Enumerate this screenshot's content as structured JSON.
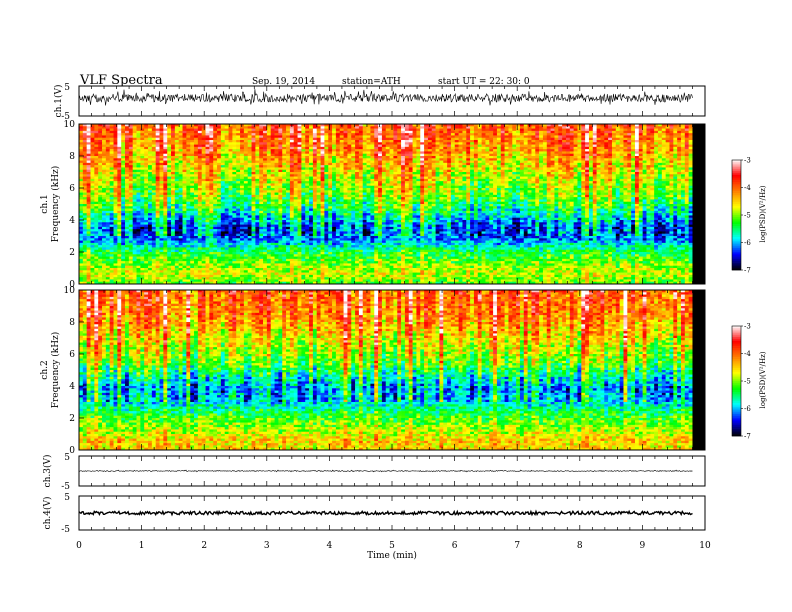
{
  "header": {
    "title": "VLF  Spectra",
    "date": "Sep. 19,  2014",
    "station": "station=ATH",
    "start": "start  UT  =   22: 30: 0"
  },
  "chart_data": [
    {
      "type": "line",
      "name": "ch1-waveform",
      "ylabel": "ch.1(V)",
      "ylim": [
        -5,
        5
      ],
      "yticks": [
        "5",
        "-5"
      ],
      "xlim": [
        0,
        10
      ],
      "x_extent_min": 9.8,
      "baseline": 1.0,
      "amplitude_range": [
        -2.5,
        3.0
      ]
    },
    {
      "type": "heatmap",
      "name": "ch1-spectrogram",
      "ylabel_line1": "ch.1",
      "ylabel_line2": "Frequency  (kHz)",
      "ylim": [
        0,
        10
      ],
      "yticks": [
        "0",
        "2",
        "4",
        "6",
        "8",
        "10"
      ],
      "xlim": [
        0,
        10
      ],
      "x_extent_min": 9.8,
      "colorbar": {
        "label": "log(PSD)(V²/Hz)",
        "range": [
          -7,
          -3
        ],
        "ticks": [
          "-3",
          "-4",
          "-5",
          "-6",
          "-7"
        ],
        "colors": [
          "#000000",
          "#0000ff",
          "#00ffff",
          "#00ff00",
          "#ffff00",
          "#ff8000",
          "#ff0000",
          "#ffffff"
        ]
      },
      "profile_khz_to_logpsd": [
        [
          0.0,
          -5.2
        ],
        [
          0.6,
          -4.8
        ],
        [
          1.2,
          -5.0
        ],
        [
          2.0,
          -5.4
        ],
        [
          2.8,
          -6.2
        ],
        [
          3.5,
          -6.3
        ],
        [
          4.5,
          -5.6
        ],
        [
          5.5,
          -5.1
        ],
        [
          7.0,
          -4.7
        ],
        [
          8.5,
          -4.2
        ],
        [
          10.0,
          -3.9
        ]
      ]
    },
    {
      "type": "heatmap",
      "name": "ch2-spectrogram",
      "ylabel_line1": "ch.2",
      "ylabel_line2": "Frequency  (kHz)",
      "ylim": [
        0,
        10
      ],
      "yticks": [
        "0",
        "2",
        "4",
        "6",
        "8",
        "10"
      ],
      "xlim": [
        0,
        10
      ],
      "x_extent_min": 9.8,
      "colorbar": {
        "label": "log(PSD)(V²/Hz)",
        "range": [
          -7,
          -3
        ],
        "ticks": [
          "-3",
          "-4",
          "-5",
          "-6",
          "-7"
        ],
        "colors": [
          "#000000",
          "#0000ff",
          "#00ffff",
          "#00ff00",
          "#ffff00",
          "#ff8000",
          "#ff0000",
          "#ffffff"
        ]
      },
      "profile_khz_to_logpsd": [
        [
          0.0,
          -4.6
        ],
        [
          0.6,
          -4.5
        ],
        [
          1.2,
          -4.9
        ],
        [
          2.0,
          -5.2
        ],
        [
          3.0,
          -5.9
        ],
        [
          3.8,
          -6.1
        ],
        [
          4.6,
          -5.7
        ],
        [
          5.5,
          -5.1
        ],
        [
          7.0,
          -4.6
        ],
        [
          8.5,
          -4.1
        ],
        [
          10.0,
          -3.9
        ]
      ]
    },
    {
      "type": "line",
      "name": "ch3-waveform",
      "ylabel": "ch.3(V)",
      "ylim": [
        -5,
        5
      ],
      "yticks": [
        "5",
        "-5"
      ],
      "xlim": [
        0,
        10
      ],
      "x_extent_min": 9.8,
      "baseline": 0.0,
      "amplitude_range": [
        -0.3,
        0.3
      ]
    },
    {
      "type": "line",
      "name": "ch4-waveform",
      "ylabel": "ch.4(V)",
      "ylim": [
        -5,
        5
      ],
      "yticks": [
        "5",
        "-5"
      ],
      "xlim": [
        0,
        10
      ],
      "x_extent_min": 9.8,
      "baseline": 0.0,
      "amplitude_range": [
        -0.5,
        0.5
      ]
    }
  ],
  "x_axis": {
    "label": "Time  (min)",
    "ticks": [
      "0",
      "1",
      "2",
      "3",
      "4",
      "5",
      "6",
      "7",
      "8",
      "9",
      "10"
    ]
  }
}
